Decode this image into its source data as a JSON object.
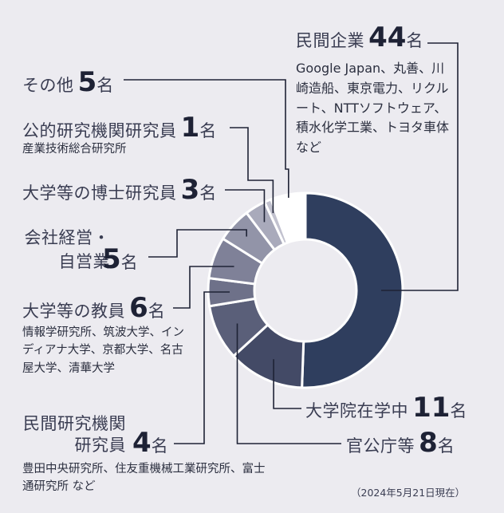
{
  "chart_data": {
    "type": "pie",
    "unit": "名",
    "categories": [
      {
        "key": "private",
        "label": "民間企業",
        "value": 44,
        "color": "#2f3e5e",
        "details": "Google Japan、丸善、川崎造船、東京電力、リクルート、NTTソフトウェア、積水化学工業、トヨタ車体 など"
      },
      {
        "key": "grad",
        "label": "大学院在学中",
        "value": 11,
        "color": "#434a66"
      },
      {
        "key": "gov",
        "label": "官公庁等",
        "value": 8,
        "color": "#5a5f79"
      },
      {
        "key": "privres",
        "label": "民間研究機関研究員",
        "value": 4,
        "color": "#6e7189",
        "details": "豊田中央研究所、住友重機械工業研究所、富士通研究所 など"
      },
      {
        "key": "teacher",
        "label": "大学等の教員",
        "value": 6,
        "color": "#7f8198",
        "details": "情報学研究所、筑波大学、インディアナ大学、京都大学、名古屋大学、清華大学"
      },
      {
        "key": "exec",
        "label": "会社経営・自営業",
        "value": 5,
        "color": "#9294a8"
      },
      {
        "key": "postdoc",
        "label": "大学等の博士研究員",
        "value": 3,
        "color": "#a9aabb"
      },
      {
        "key": "public",
        "label": "公的研究機関研究員",
        "value": 1,
        "color": "#c2c2cf",
        "details": "産業技術総合研究所"
      },
      {
        "key": "other",
        "label": "その他",
        "value": 5,
        "color": "#ffffff"
      }
    ],
    "note": "（2024年5月21日現在）"
  }
}
